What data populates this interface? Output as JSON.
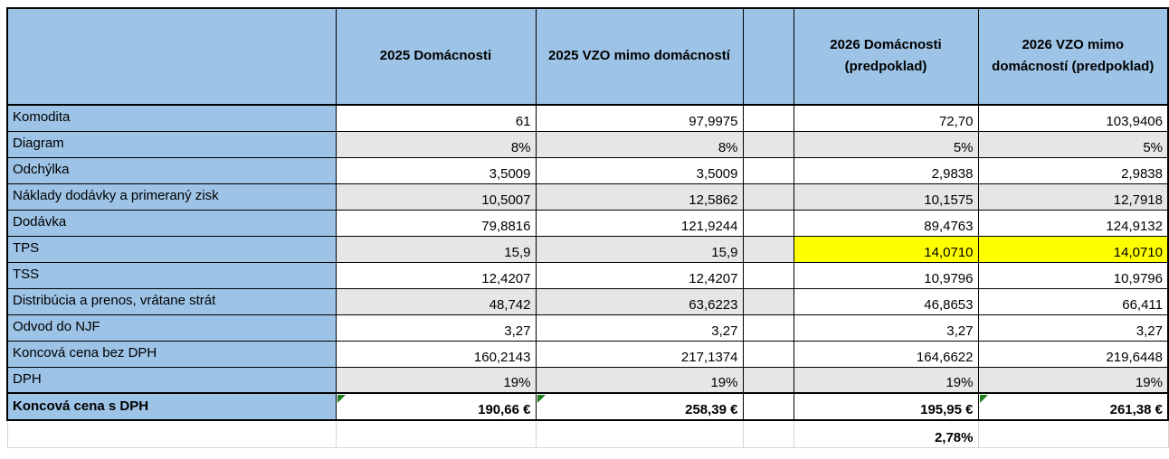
{
  "table": {
    "header": {
      "label_col": "",
      "columns": [
        "2025 Domácnosti",
        "2025 VZO mimo domácností",
        "",
        "2026 Domácnosti (predpoklad)",
        "2026 VZO mimo domácností (predpoklad)"
      ]
    },
    "rows": [
      {
        "label": "Komodita",
        "values": [
          "61",
          "97,9975",
          "72,70",
          "103,9406"
        ],
        "shade": "white",
        "bg2026": "white",
        "bold": false,
        "triangles": [
          false,
          false,
          false,
          false
        ]
      },
      {
        "label": "Diagram",
        "values": [
          "8%",
          "8%",
          "5%",
          "5%"
        ],
        "shade": "gray",
        "bg2026": "gray",
        "bold": false,
        "triangles": [
          false,
          false,
          false,
          false
        ]
      },
      {
        "label": "Odchýlka",
        "values": [
          "3,5009",
          "3,5009",
          "2,9838",
          "2,9838"
        ],
        "shade": "white",
        "bg2026": "white",
        "bold": false,
        "triangles": [
          false,
          false,
          false,
          false
        ]
      },
      {
        "label": "Náklady dodávky a primeraný zisk",
        "values": [
          "10,5007",
          "12,5862",
          "10,1575",
          "12,7918"
        ],
        "shade": "gray",
        "bg2026": "gray",
        "bold": false,
        "triangles": [
          false,
          false,
          false,
          false
        ]
      },
      {
        "label": "Dodávka",
        "values": [
          "79,8816",
          "121,9244",
          "89,4763",
          "124,9132"
        ],
        "shade": "white",
        "bg2026": "white",
        "bold": false,
        "triangles": [
          false,
          false,
          false,
          false
        ]
      },
      {
        "label": "TPS",
        "values": [
          "15,9",
          "15,9",
          "14,0710",
          "14,0710"
        ],
        "shade": "gray",
        "bg2026": "yellow",
        "bold": false,
        "triangles": [
          false,
          false,
          false,
          false
        ]
      },
      {
        "label": "TSS",
        "values": [
          "12,4207",
          "12,4207",
          "10,9796",
          "10,9796"
        ],
        "shade": "white",
        "bg2026": "white",
        "bold": false,
        "triangles": [
          false,
          false,
          false,
          false
        ]
      },
      {
        "label": "Distribúcia a prenos, vrátane strát",
        "values": [
          "48,742",
          "63,6223",
          "46,8653",
          "66,411"
        ],
        "shade": "gray",
        "bg2026": "white",
        "bold": false,
        "triangles": [
          false,
          false,
          false,
          false
        ]
      },
      {
        "label": "Odvod do NJF",
        "values": [
          "3,27",
          "3,27",
          "3,27",
          "3,27"
        ],
        "shade": "white",
        "bg2026": "white",
        "bold": false,
        "triangles": [
          false,
          false,
          false,
          false
        ]
      },
      {
        "label": "Koncová cena bez DPH",
        "values": [
          "160,2143",
          "217,1374",
          "164,6622",
          "219,6448"
        ],
        "shade": "white",
        "bg2026": "white",
        "bold": false,
        "triangles": [
          false,
          false,
          false,
          false
        ]
      },
      {
        "label": "DPH",
        "values": [
          "19%",
          "19%",
          "19%",
          "19%"
        ],
        "shade": "gray",
        "bg2026": "gray",
        "bold": false,
        "triangles": [
          false,
          false,
          false,
          false
        ]
      },
      {
        "label": "Koncová cena s DPH",
        "values": [
          "190,66 €",
          "258,39 €",
          "195,95 €",
          "261,38 €"
        ],
        "shade": "white",
        "bg2026": "white",
        "bold": true,
        "triangles": [
          true,
          true,
          false,
          true
        ]
      }
    ],
    "footer": {
      "value": "2,78%",
      "column_index": 3
    }
  },
  "colors": {
    "header_blue": "#9DC3E6",
    "stripe_gray": "#E7E6E6",
    "highlight_yellow": "#FFFF00",
    "triangle_green": "#1E7E1E",
    "gridline_gray": "#D6D4D4",
    "border_black": "#000000"
  }
}
